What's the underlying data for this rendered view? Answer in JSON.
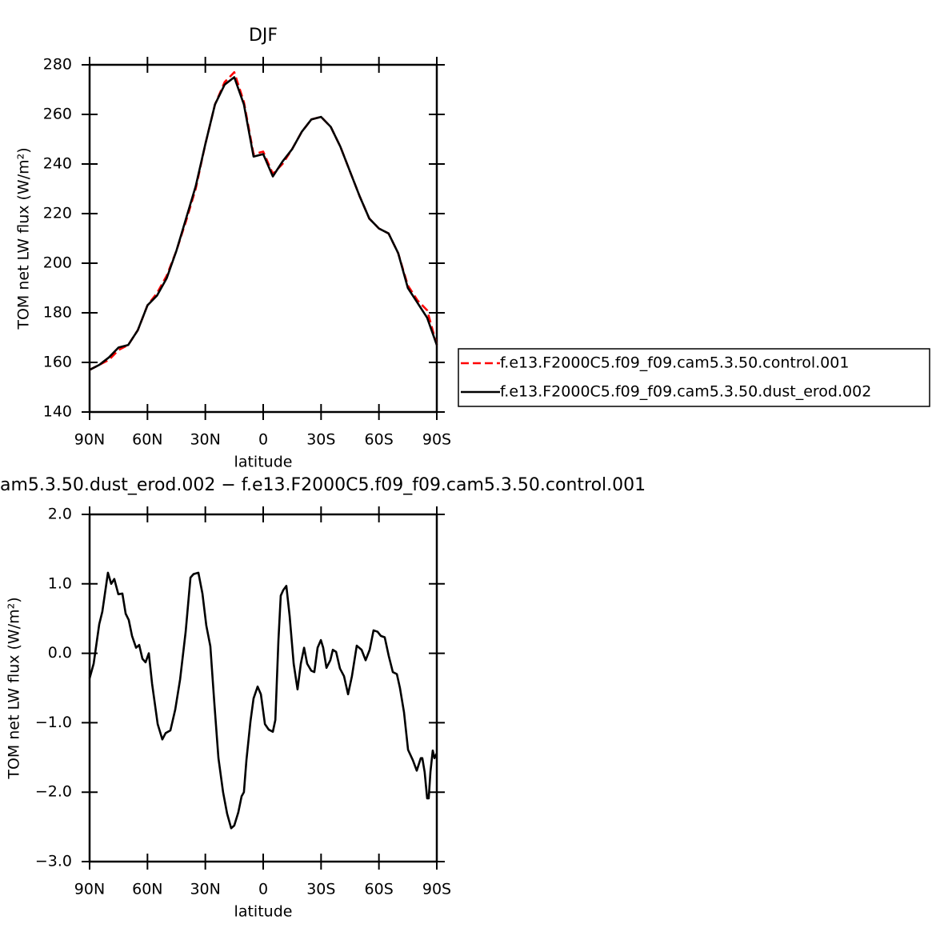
{
  "chart_data": [
    {
      "type": "line",
      "title": "DJF",
      "xlabel": "latitude",
      "ylabel": "TOM net LW flux (W/m²)",
      "x": [
        90,
        85,
        80,
        75,
        70,
        65,
        60,
        55,
        50,
        45,
        40,
        35,
        30,
        25,
        20,
        15,
        10,
        5,
        0,
        -5,
        -10,
        -15,
        -20,
        -25,
        -30,
        -35,
        -40,
        -45,
        -50,
        -55,
        -60,
        -65,
        -70,
        -75,
        -80,
        -85,
        -90
      ],
      "series": [
        {
          "name": "f.e13.F2000C5.f09_f09.cam5.3.50.control.001",
          "color": "#ff0000",
          "dashed": true,
          "values": [
            157,
            159,
            161,
            165,
            167,
            173,
            183,
            188,
            195,
            205,
            217,
            230,
            248,
            264,
            273,
            277,
            265,
            244,
            245,
            236,
            240,
            246,
            253,
            258,
            259,
            255,
            247,
            237,
            227,
            218,
            214,
            212,
            204,
            191,
            185,
            181,
            167
          ]
        },
        {
          "name": "f.e13.F2000C5.f09_f09.cam5.3.50.dust_erod.002",
          "color": "#000000",
          "dashed": false,
          "values": [
            157,
            159,
            162,
            166,
            167,
            173,
            183,
            187,
            194,
            205,
            218,
            231,
            248,
            264,
            272,
            275,
            264,
            243,
            244,
            235,
            241,
            246,
            253,
            258,
            259,
            255,
            247,
            237,
            227,
            218,
            214,
            212,
            204,
            190,
            184,
            178,
            167
          ]
        }
      ],
      "xlim": [
        90,
        -90
      ],
      "xticks": [
        {
          "value": 90,
          "label": "90N"
        },
        {
          "value": 60,
          "label": "60N"
        },
        {
          "value": 30,
          "label": "30N"
        },
        0,
        {
          "value": -30,
          "label": "30S"
        },
        {
          "value": -60,
          "label": "60S"
        },
        {
          "value": -90,
          "label": "90S"
        }
      ],
      "ylim": [
        140,
        280
      ],
      "yticks": [
        140,
        160,
        180,
        200,
        220,
        240,
        260,
        280
      ],
      "legend": "right"
    },
    {
      "type": "line",
      "title": "am5.3.50.dust_erod.002 − f.e13.F2000C5.f09_f09.cam5.3.50.control.001",
      "xlabel": "latitude",
      "ylabel": "TOM net LW flux (W/m²)",
      "x": [
        90,
        87.9,
        85.0,
        83.4,
        80.5,
        78.8,
        77.2,
        75.1,
        73.0,
        71.3,
        69.7,
        68.0,
        65.9,
        64.3,
        62.6,
        61.0,
        59.3,
        57.6,
        54.7,
        52.3,
        50.6,
        48.1,
        45.6,
        43.1,
        40.2,
        37.7,
        36.1,
        33.6,
        31.5,
        29.5,
        27.4,
        25.3,
        23.2,
        20.8,
        18.7,
        16.6,
        15.0,
        12.9,
        11.2,
        10.0,
        8.7,
        6.6,
        5.0,
        2.9,
        1.2,
        -0.9,
        -2.9,
        -5.0,
        -6.3,
        -7.9,
        -9.1,
        -10.4,
        -12.0,
        -13.7,
        -15.8,
        -17.8,
        -19.5,
        -21.2,
        -22.8,
        -24.9,
        -26.5,
        -28.2,
        -29.9,
        -31.1,
        -32.8,
        -34.8,
        -36.1,
        -37.8,
        -39.8,
        -41.9,
        -44.0,
        -46.0,
        -48.5,
        -51.0,
        -53.1,
        -55.2,
        -57.2,
        -59.3,
        -61.0,
        -63.0,
        -65.1,
        -67.2,
        -69.3,
        -70.9,
        -73.0,
        -75.1,
        -77.6,
        -79.6,
        -81.7,
        -82.5,
        -83.7,
        -85.0,
        -85.8,
        -86.7,
        -87.9,
        -88.8,
        -90
      ],
      "series": [
        {
          "color": "#000000",
          "dashed": false,
          "values": [
            -0.36,
            -0.15,
            0.42,
            0.6,
            1.16,
            1.0,
            1.07,
            0.85,
            0.86,
            0.57,
            0.48,
            0.25,
            0.08,
            0.12,
            -0.08,
            -0.13,
            0.0,
            -0.44,
            -1.02,
            -1.24,
            -1.15,
            -1.11,
            -0.81,
            -0.38,
            0.31,
            1.09,
            1.14,
            1.16,
            0.86,
            0.4,
            0.1,
            -0.73,
            -1.51,
            -2.0,
            -2.31,
            -2.52,
            -2.48,
            -2.29,
            -2.06,
            -2.0,
            -1.54,
            -0.98,
            -0.65,
            -0.48,
            -0.59,
            -1.02,
            -1.1,
            -1.13,
            -0.96,
            0.19,
            0.83,
            0.91,
            0.97,
            0.54,
            -0.15,
            -0.52,
            -0.15,
            0.08,
            -0.15,
            -0.25,
            -0.27,
            0.08,
            0.19,
            0.08,
            -0.21,
            -0.1,
            0.05,
            0.02,
            -0.22,
            -0.33,
            -0.59,
            -0.33,
            0.11,
            0.05,
            -0.1,
            0.05,
            0.33,
            0.31,
            0.25,
            0.23,
            -0.04,
            -0.27,
            -0.3,
            -0.5,
            -0.85,
            -1.39,
            -1.54,
            -1.69,
            -1.51,
            -1.51,
            -1.71,
            -2.09,
            -2.09,
            -1.71,
            -1.4,
            -1.51,
            -1.44
          ]
        }
      ],
      "xlim": [
        90,
        -90
      ],
      "xticks": [
        {
          "value": 90,
          "label": "90N"
        },
        {
          "value": 60,
          "label": "60N"
        },
        {
          "value": 30,
          "label": "30N"
        },
        0,
        {
          "value": -30,
          "label": "30S"
        },
        {
          "value": -60,
          "label": "60S"
        },
        {
          "value": -90,
          "label": "90S"
        }
      ],
      "ylim": [
        -3,
        2
      ],
      "yticks": [
        {
          "value": -3,
          "label": "−3.0"
        },
        {
          "value": -2,
          "label": "−2.0"
        },
        {
          "value": -1,
          "label": "−1.0"
        },
        {
          "value": 0,
          "label": "0.0"
        },
        {
          "value": 1,
          "label": "1.0"
        },
        {
          "value": 2,
          "label": "2.0"
        }
      ]
    }
  ]
}
